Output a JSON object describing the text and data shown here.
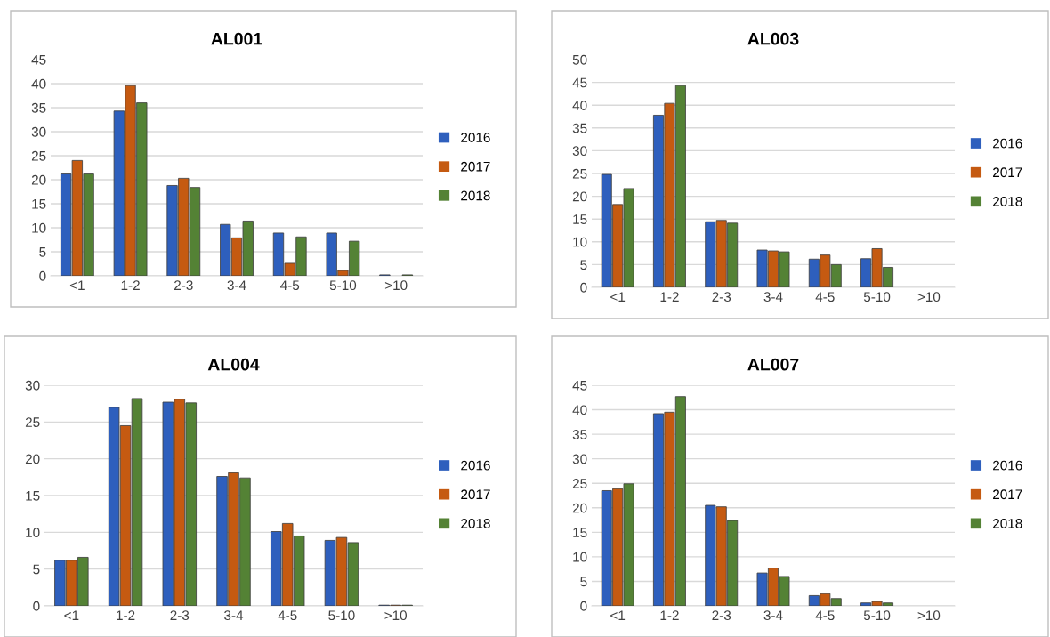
{
  "chart_data": [
    {
      "type": "bar",
      "title": "AL001",
      "categories": [
        "<1",
        "1-2",
        "2-3",
        "3-4",
        "4-5",
        "5-10",
        ">10"
      ],
      "ylim": [
        0,
        45
      ],
      "yticks": [
        0,
        5,
        10,
        15,
        20,
        25,
        30,
        35,
        40,
        45
      ],
      "grid": "y",
      "legend": "right",
      "series": [
        {
          "name": "2016",
          "color": "#2e5fbd",
          "values": [
            21.2,
            34.3,
            18.8,
            10.7,
            8.9,
            8.9,
            0.2
          ]
        },
        {
          "name": "2017",
          "color": "#c55a11",
          "values": [
            24,
            39.6,
            20.3,
            7.9,
            2.6,
            1.1,
            0
          ]
        },
        {
          "name": "2018",
          "color": "#548235",
          "values": [
            21.2,
            36,
            18.4,
            11.4,
            8.1,
            7.2,
            0.2
          ]
        }
      ]
    },
    {
      "type": "bar",
      "title": "AL003",
      "categories": [
        "<1",
        "1-2",
        "2-3",
        "3-4",
        "4-5",
        "5-10",
        ">10"
      ],
      "ylim": [
        0,
        50
      ],
      "yticks": [
        0,
        5,
        10,
        15,
        20,
        25,
        30,
        35,
        40,
        45,
        50
      ],
      "grid": "y",
      "legend": "right",
      "series": [
        {
          "name": "2016",
          "color": "#2e5fbd",
          "values": [
            24.8,
            37.8,
            14.4,
            8.2,
            6.2,
            6.3,
            0
          ]
        },
        {
          "name": "2017",
          "color": "#c55a11",
          "values": [
            18.2,
            40.4,
            14.7,
            8.0,
            7.1,
            8.5,
            0
          ]
        },
        {
          "name": "2018",
          "color": "#548235",
          "values": [
            21.7,
            44.3,
            14.1,
            7.8,
            5.0,
            4.4,
            0
          ]
        }
      ]
    },
    {
      "type": "bar",
      "title": "AL004",
      "categories": [
        "<1",
        "1-2",
        "2-3",
        "3-4",
        "4-5",
        "5-10",
        ">10"
      ],
      "ylim": [
        0,
        30
      ],
      "yticks": [
        0,
        5,
        10,
        15,
        20,
        25,
        30
      ],
      "grid": "y",
      "legend": "right",
      "series": [
        {
          "name": "2016",
          "color": "#2e5fbd",
          "values": [
            6.2,
            27.0,
            27.7,
            17.6,
            10.1,
            8.9,
            0.1
          ]
        },
        {
          "name": "2017",
          "color": "#c55a11",
          "values": [
            6.2,
            24.5,
            28.1,
            18.1,
            11.2,
            9.3,
            0.1
          ]
        },
        {
          "name": "2018",
          "color": "#548235",
          "values": [
            6.6,
            28.2,
            27.6,
            17.4,
            9.5,
            8.6,
            0.1
          ]
        }
      ]
    },
    {
      "type": "bar",
      "title": "AL007",
      "categories": [
        "<1",
        "1-2",
        "2-3",
        "3-4",
        "4-5",
        "5-10",
        ">10"
      ],
      "ylim": [
        0,
        45
      ],
      "yticks": [
        0,
        5,
        10,
        15,
        20,
        25,
        30,
        35,
        40,
        45
      ],
      "grid": "y",
      "legend": "right",
      "series": [
        {
          "name": "2016",
          "color": "#2e5fbd",
          "values": [
            23.5,
            39.2,
            20.5,
            6.7,
            2.1,
            0.6,
            0
          ]
        },
        {
          "name": "2017",
          "color": "#c55a11",
          "values": [
            23.9,
            39.5,
            20.2,
            7.7,
            2.5,
            0.9,
            0
          ]
        },
        {
          "name": "2018",
          "color": "#548235",
          "values": [
            24.9,
            42.7,
            17.4,
            6.0,
            1.5,
            0.6,
            0
          ]
        }
      ]
    }
  ]
}
